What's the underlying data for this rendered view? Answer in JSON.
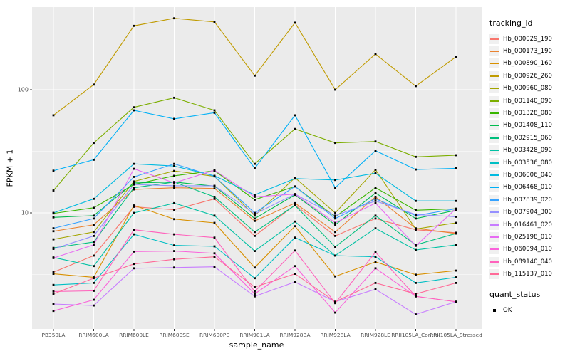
{
  "chart_data": {
    "type": "line",
    "title": "",
    "xlabel": "sample_name",
    "ylabel": "FPKM + 1",
    "y_scale": "log10",
    "ylim": [
      1.14,
      468
    ],
    "y_ticks": [
      100,
      10
    ],
    "y_minor_ticks": [
      3.162,
      31.62,
      316.2
    ],
    "grid": true,
    "panel_bg": "#EBEBEB",
    "gridline_color": "#FFFFFF",
    "point_color": "#000000",
    "point_shape": "filled-square",
    "legend": {
      "color_title": "tracking_id",
      "shape_title": "quant_status",
      "shape_items": [
        {
          "label": "OK",
          "marker": "filled-square"
        }
      ]
    },
    "categories": [
      "PB350LA",
      "RRIM600LA",
      "RRIM600LE",
      "RRIM600SE",
      "RRIM600PE",
      "RRIM901LA",
      "RRIM928BA",
      "RRIM928LA",
      "RRIM928LE",
      "RRII105LA_Control",
      "RRII105LA_Stressed"
    ],
    "series": [
      {
        "name": "Hb_000029_190",
        "color": "#F8766D",
        "values": [
          3.3,
          4.5,
          11.2,
          10.6,
          13.0,
          6.5,
          11.6,
          6.5,
          9.0,
          7.3,
          6.9
        ]
      },
      {
        "name": "Hb_000173_190",
        "color": "#EA8331",
        "values": [
          7.1,
          8.0,
          15.5,
          16.0,
          15.8,
          8.6,
          12.0,
          7.0,
          13.5,
          7.5,
          6.8
        ]
      },
      {
        "name": "Hb_000890_160",
        "color": "#D89000",
        "values": [
          3.2,
          3.0,
          11.5,
          8.9,
          8.3,
          3.6,
          7.8,
          3.05,
          4.0,
          3.15,
          3.4
        ]
      },
      {
        "name": "Hb_000926_260",
        "color": "#C09B00",
        "values": [
          62,
          110,
          330,
          380,
          355,
          130,
          350,
          100,
          195,
          107,
          185
        ]
      },
      {
        "name": "Hb_000960_080",
        "color": "#A3A500",
        "values": [
          6.1,
          7.0,
          18.0,
          21.9,
          19.8,
          9.5,
          19.3,
          10.0,
          22.4,
          7.4,
          8.3
        ]
      },
      {
        "name": "Hb_001140_090",
        "color": "#7CAE00",
        "values": [
          15.2,
          37,
          72,
          86,
          68,
          25,
          48,
          37,
          38,
          28.5,
          29.4
        ]
      },
      {
        "name": "Hb_001328_080",
        "color": "#39B600",
        "values": [
          9.9,
          11.0,
          17.0,
          20.0,
          22.0,
          12.8,
          16.4,
          9.3,
          16.0,
          10.5,
          10.8
        ]
      },
      {
        "name": "Hb_001408_110",
        "color": "#00BB4E",
        "values": [
          9.2,
          9.5,
          17.5,
          17.8,
          16.5,
          9.0,
          14.0,
          8.0,
          14.5,
          9.0,
          10.5
        ]
      },
      {
        "name": "Hb_002915_060",
        "color": "#00BF7D",
        "values": [
          5.2,
          5.8,
          16.0,
          17.8,
          13.5,
          7.0,
          11.5,
          5.3,
          9.5,
          5.5,
          6.8
        ]
      },
      {
        "name": "Hb_003428_090",
        "color": "#00C1A3",
        "values": [
          4.35,
          3.7,
          10.0,
          12.0,
          9.5,
          4.9,
          8.5,
          4.5,
          7.5,
          5.0,
          5.5
        ]
      },
      {
        "name": "Hb_003536_080",
        "color": "#00BFC4",
        "values": [
          2.6,
          2.7,
          6.7,
          5.45,
          5.35,
          2.95,
          6.3,
          4.5,
          4.4,
          2.7,
          3.0
        ]
      },
      {
        "name": "Hb_006006_040",
        "color": "#00BAE0",
        "values": [
          10.0,
          13.0,
          25.0,
          24.0,
          20.0,
          14.0,
          19.0,
          18.5,
          21.0,
          12.5,
          12.5
        ]
      },
      {
        "name": "Hb_006468_010",
        "color": "#00B0F6",
        "values": [
          22,
          27,
          68,
          58,
          65,
          23,
          62,
          16,
          32,
          22.5,
          23
        ]
      },
      {
        "name": "Hb_007839_020",
        "color": "#35A2FF",
        "values": [
          7.5,
          9.0,
          19.6,
          25.0,
          19.8,
          10.0,
          16.4,
          9.0,
          13.0,
          9.5,
          10.8
        ]
      },
      {
        "name": "Hb_007904_300",
        "color": "#9590FF",
        "values": [
          5.1,
          6.5,
          17.0,
          16.6,
          16.6,
          9.8,
          14.2,
          9.5,
          12.5,
          9.7,
          9.3
        ]
      },
      {
        "name": "Hb_016461_020",
        "color": "#C77CFF",
        "values": [
          1.82,
          1.77,
          3.55,
          3.6,
          3.65,
          2.1,
          2.75,
          1.9,
          2.4,
          1.5,
          1.9
        ]
      },
      {
        "name": "Hb_025198_010",
        "color": "#E76BF3",
        "values": [
          4.3,
          5.5,
          22.8,
          17.5,
          22.2,
          13.5,
          14.2,
          8.3,
          12.0,
          5.4,
          10.8
        ]
      },
      {
        "name": "Hb_060094_010",
        "color": "#FA62DB",
        "values": [
          1.6,
          1.97,
          4.85,
          4.9,
          4.7,
          2.2,
          3.7,
          1.55,
          3.55,
          2.1,
          1.9
        ]
      },
      {
        "name": "Hb_089140_040",
        "color": "#FF62BC",
        "values": [
          2.3,
          2.33,
          7.3,
          6.7,
          6.3,
          2.3,
          4.95,
          1.85,
          4.8,
          2.1,
          1.9
        ]
      },
      {
        "name": "Hb_115137_010",
        "color": "#FF6A98",
        "values": [
          2.2,
          2.95,
          3.85,
          4.2,
          4.4,
          2.5,
          3.2,
          1.9,
          2.7,
          2.2,
          2.7
        ]
      }
    ]
  }
}
